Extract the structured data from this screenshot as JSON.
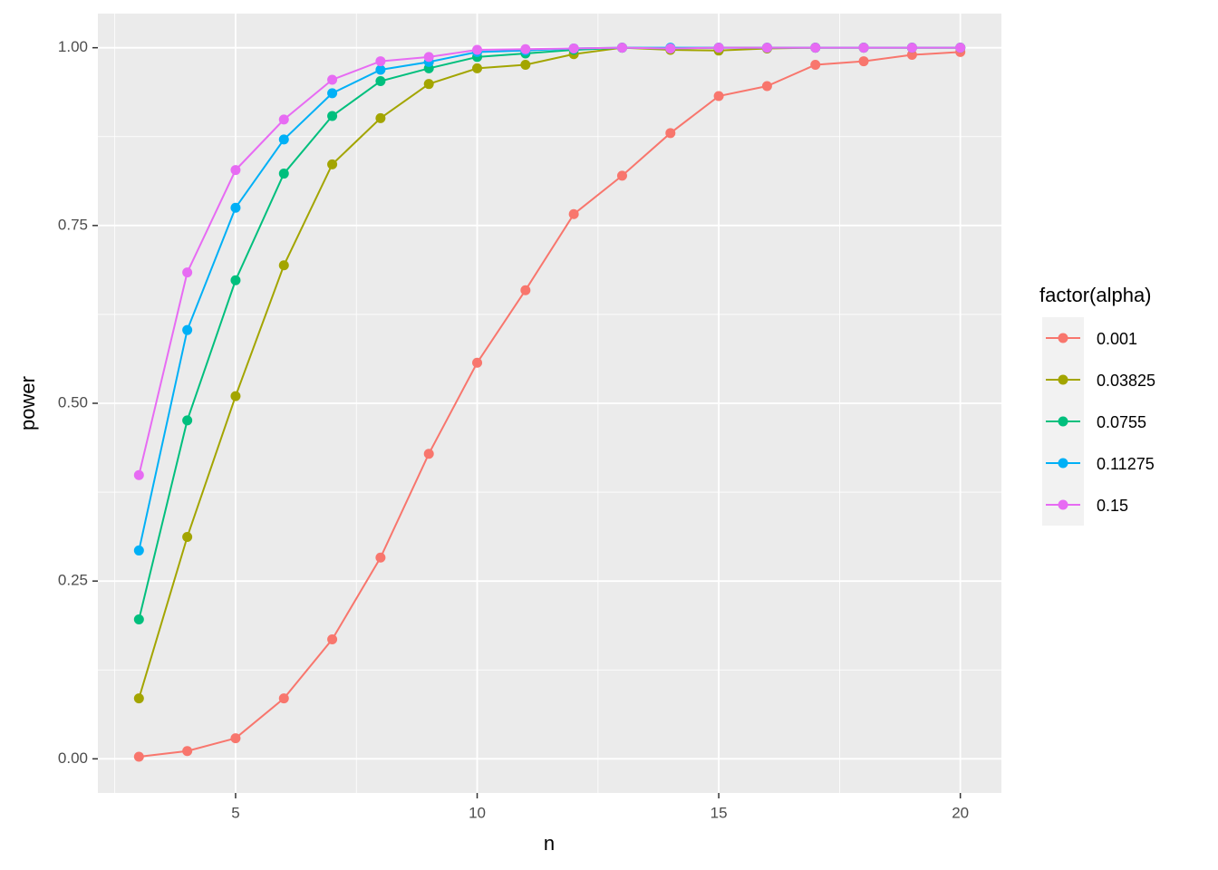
{
  "chart_data": {
    "type": "line",
    "x_label": "n",
    "y_label": "power",
    "legend_title": "factor(alpha)",
    "x": [
      3,
      4,
      5,
      6,
      7,
      8,
      9,
      10,
      11,
      12,
      13,
      14,
      15,
      16,
      17,
      18,
      19,
      20
    ],
    "series": [
      {
        "name": "0.001",
        "color": "#F8766D",
        "values": [
          0.003,
          0.011,
          0.029,
          0.085,
          0.168,
          0.283,
          0.429,
          0.557,
          0.659,
          0.766,
          0.82,
          0.88,
          0.932,
          0.946,
          0.976,
          0.981,
          0.99,
          0.994
        ]
      },
      {
        "name": "0.03825",
        "color": "#A3A500",
        "values": [
          0.085,
          0.312,
          0.51,
          0.694,
          0.836,
          0.901,
          0.949,
          0.971,
          0.976,
          0.991,
          1.0,
          0.997,
          0.996,
          0.999,
          1.0,
          1.0,
          1.0,
          1.0
        ]
      },
      {
        "name": "0.0755",
        "color": "#00BF7D",
        "values": [
          0.196,
          0.476,
          0.673,
          0.823,
          0.904,
          0.953,
          0.971,
          0.987,
          0.992,
          0.997,
          1.0,
          0.999,
          1.0,
          1.0,
          1.0,
          1.0,
          1.0,
          1.0
        ]
      },
      {
        "name": "0.11275",
        "color": "#00B0F6",
        "values": [
          0.293,
          0.603,
          0.775,
          0.871,
          0.936,
          0.969,
          0.98,
          0.994,
          0.996,
          0.999,
          1.0,
          1.0,
          1.0,
          1.0,
          1.0,
          1.0,
          1.0,
          1.0
        ]
      },
      {
        "name": "0.15",
        "color": "#E76BF3",
        "values": [
          0.399,
          0.684,
          0.828,
          0.899,
          0.955,
          0.981,
          0.987,
          0.997,
          0.998,
          0.999,
          1.0,
          0.999,
          1.0,
          1.0,
          1.0,
          1.0,
          1.0,
          1.0
        ]
      }
    ],
    "xlim": [
      2.15,
      20.85
    ],
    "ylim": [
      -0.048,
      1.048
    ],
    "xticks": [
      5,
      10,
      15,
      20
    ],
    "yticks": [
      {
        "value": 0,
        "label": "0.00"
      },
      {
        "value": 0.25,
        "label": "0.25"
      },
      {
        "value": 0.5,
        "label": "0.50"
      },
      {
        "value": 0.75,
        "label": "0.75"
      },
      {
        "value": 1,
        "label": "1.00"
      }
    ],
    "xminor": [
      2.5,
      7.5,
      12.5,
      17.5
    ],
    "yminor": [
      0.125,
      0.375,
      0.625,
      0.875
    ],
    "grid": true,
    "legend": "right"
  }
}
